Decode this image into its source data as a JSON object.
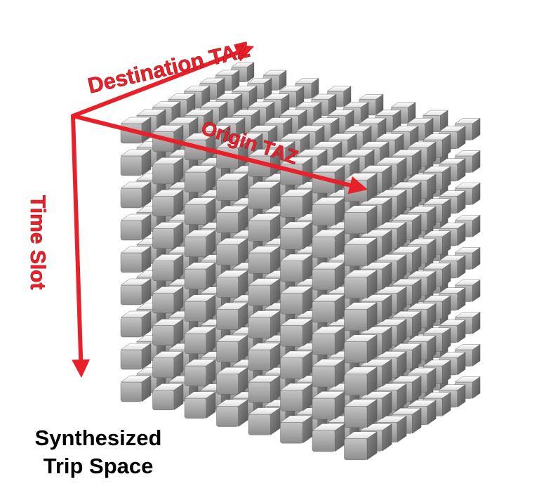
{
  "axes": {
    "destination": "Destination TAZ",
    "origin": "Origin TAZ",
    "time": "Time Slot"
  },
  "caption": {
    "line1": "Synthesized",
    "line2": "Trip Space"
  },
  "grid": {
    "rows": 9,
    "cols": 8,
    "depth": 8
  },
  "colors": {
    "arrow": "#e8202a",
    "cube_top": "#f6f6f6",
    "cube_front": "#a9a9a9",
    "cube_side": "#6f6f6f",
    "cube_edge": "#5a5a5a"
  }
}
